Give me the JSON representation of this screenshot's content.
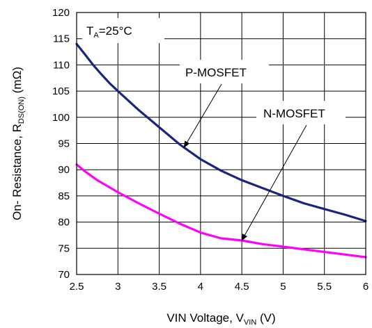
{
  "chart_data": {
    "type": "line",
    "title": "",
    "xlabel": {
      "main": "VIN Voltage, V",
      "sub": "VIN",
      "suffix": " (V)"
    },
    "ylabel": {
      "main": "On- Resistance, R",
      "sub": "DS(ON)",
      "suffix": " (mΩ)"
    },
    "xlim": [
      2.5,
      6
    ],
    "ylim": [
      70,
      120
    ],
    "x_ticks": [
      "2.5",
      "3",
      "3.5",
      "4",
      "4.5",
      "5",
      "5.5",
      "6"
    ],
    "y_ticks": [
      "70",
      "75",
      "80",
      "85",
      "90",
      "95",
      "100",
      "105",
      "110",
      "115",
      "120"
    ],
    "grid": true,
    "series": [
      {
        "name": "P-MOSFET",
        "color": "#1a237e",
        "x": [
          2.5,
          2.6,
          2.7,
          2.8,
          2.9,
          3.0,
          3.25,
          3.5,
          3.75,
          4.0,
          4.25,
          4.5,
          4.75,
          5.0,
          5.25,
          5.5,
          5.75,
          6.0
        ],
        "y": [
          114,
          112,
          110,
          108.2,
          106.5,
          105,
          101.4,
          98.1,
          94.8,
          92.0,
          89.8,
          88.0,
          86.5,
          85.0,
          83.6,
          82.5,
          81.4,
          80.2
        ]
      },
      {
        "name": "N-MOSFET",
        "color": "#ff00ff",
        "x": [
          2.5,
          2.6,
          2.75,
          3.0,
          3.25,
          3.5,
          3.75,
          4.0,
          4.25,
          4.5,
          4.75,
          5.0,
          5.25,
          5.5,
          5.75,
          6.0
        ],
        "y": [
          91,
          89.7,
          88,
          85.7,
          83.6,
          81.6,
          79.7,
          78.0,
          76.9,
          76.5,
          75.8,
          75.3,
          74.8,
          74.3,
          73.8,
          73.3
        ]
      }
    ],
    "annotations": {
      "condition": {
        "main": "T",
        "sub": "A",
        "suffix": "=25°C"
      },
      "labels": [
        {
          "text": "P-MOSFET",
          "series": 0,
          "target_x": 3.8
        },
        {
          "text": "N-MOSFET",
          "series": 1,
          "target_x": 4.5
        }
      ]
    }
  }
}
